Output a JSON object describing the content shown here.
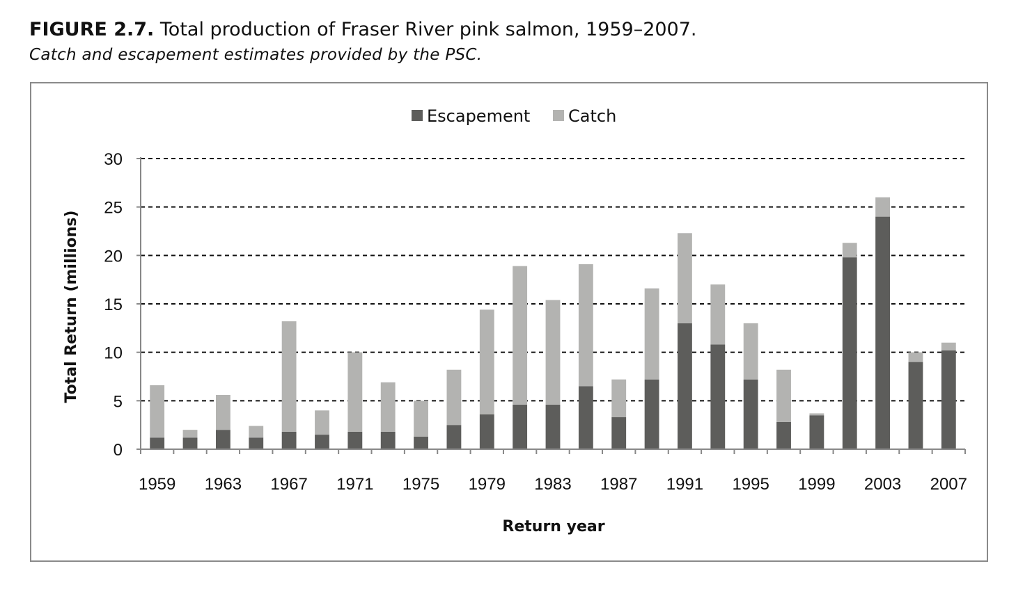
{
  "figure": {
    "label": "FIGURE 2.7.",
    "title": "Total production of Fraser River pink salmon, 1959–2007.",
    "subtitle": "Catch and escapement estimates provided by the PSC."
  },
  "colors": {
    "escapement": "#5d5d5b",
    "catch": "#b3b3b1",
    "axis": "#888888",
    "grid": "#111111"
  },
  "chart_data": {
    "type": "bar",
    "stacked": true,
    "categories": [
      1959,
      1961,
      1963,
      1965,
      1967,
      1969,
      1971,
      1973,
      1975,
      1977,
      1979,
      1981,
      1983,
      1985,
      1987,
      1989,
      1991,
      1993,
      1995,
      1997,
      1999,
      2001,
      2003,
      2005,
      2007
    ],
    "tick_labels": [
      "1959",
      "1963",
      "1967",
      "1971",
      "1975",
      "1979",
      "1983",
      "1987",
      "1991",
      "1995",
      "1999",
      "2003",
      "2007"
    ],
    "series": [
      {
        "name": "Escapement",
        "values": [
          1.2,
          1.2,
          2.0,
          1.2,
          1.8,
          1.5,
          1.8,
          1.8,
          1.3,
          2.5,
          3.6,
          4.6,
          4.6,
          6.5,
          3.3,
          7.2,
          13.0,
          10.8,
          7.2,
          2.8,
          3.5,
          19.8,
          24.0,
          9.0,
          10.2
        ]
      },
      {
        "name": "Catch",
        "values": [
          5.4,
          0.8,
          3.6,
          1.2,
          11.4,
          2.5,
          8.2,
          5.1,
          3.7,
          5.7,
          10.8,
          14.3,
          10.8,
          12.6,
          3.9,
          9.4,
          9.3,
          6.2,
          5.8,
          5.4,
          0.2,
          1.5,
          2.0,
          1.0,
          0.8
        ]
      }
    ],
    "xlabel": "Return year",
    "ylabel": "Total Return (millions)",
    "ylim": [
      0,
      30
    ],
    "yticks": [
      0,
      5,
      10,
      15,
      20,
      25,
      30
    ],
    "grid": true,
    "legend": "top-center"
  }
}
